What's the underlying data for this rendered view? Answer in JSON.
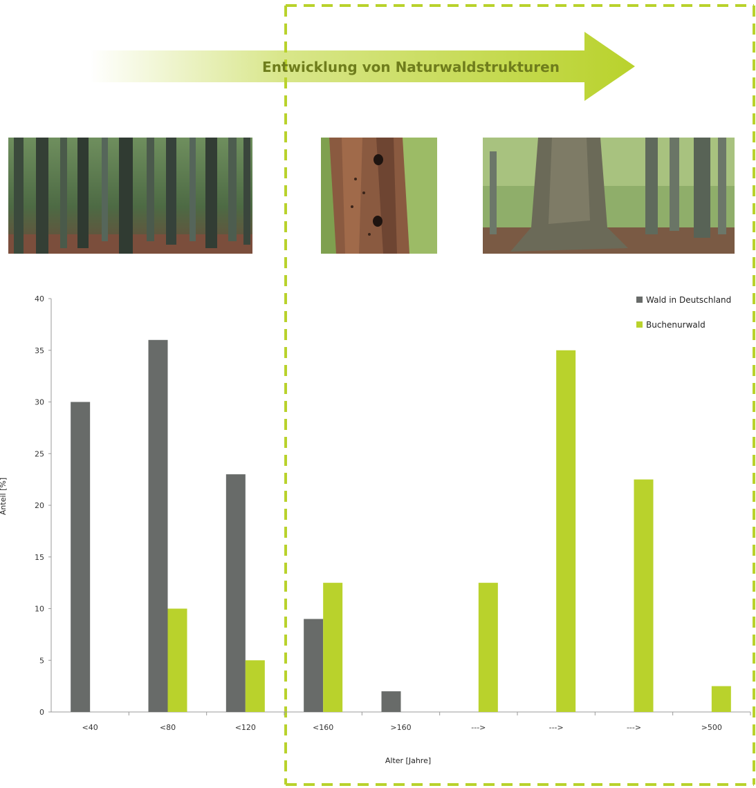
{
  "banner": {
    "arrow_label": "Entwicklung von Naturwaldstrukturen"
  },
  "photos": [
    {
      "name": "young-beech-forest-photo"
    },
    {
      "name": "woodpecker-tree-trunk-photo"
    },
    {
      "name": "old-growth-beech-photo"
    }
  ],
  "colors": {
    "series_grey": "#686b69",
    "series_green": "#b9d22c",
    "divider": "#b9d22c"
  },
  "chart_data": {
    "type": "bar",
    "categories": [
      "<40",
      "<80",
      "<120",
      "<160",
      ">160",
      "--->",
      "--->",
      "--->",
      ">500"
    ],
    "series": [
      {
        "name": "Wald in Deutschland",
        "color": "#686b69",
        "values": [
          30,
          36,
          23,
          9,
          2,
          null,
          null,
          null,
          null
        ]
      },
      {
        "name": "Buchenurwald",
        "color": "#b9d22c",
        "values": [
          null,
          10,
          5,
          12.5,
          null,
          12.5,
          35,
          22.5,
          2.5
        ]
      }
    ],
    "xlabel": "Alter [Jahre]",
    "ylabel": "Anteil [%]",
    "ylim": [
      0,
      40
    ],
    "yticks": [
      0,
      5,
      10,
      15,
      20,
      25,
      30,
      35,
      40
    ],
    "legend_position": "top-right",
    "grid": false
  }
}
